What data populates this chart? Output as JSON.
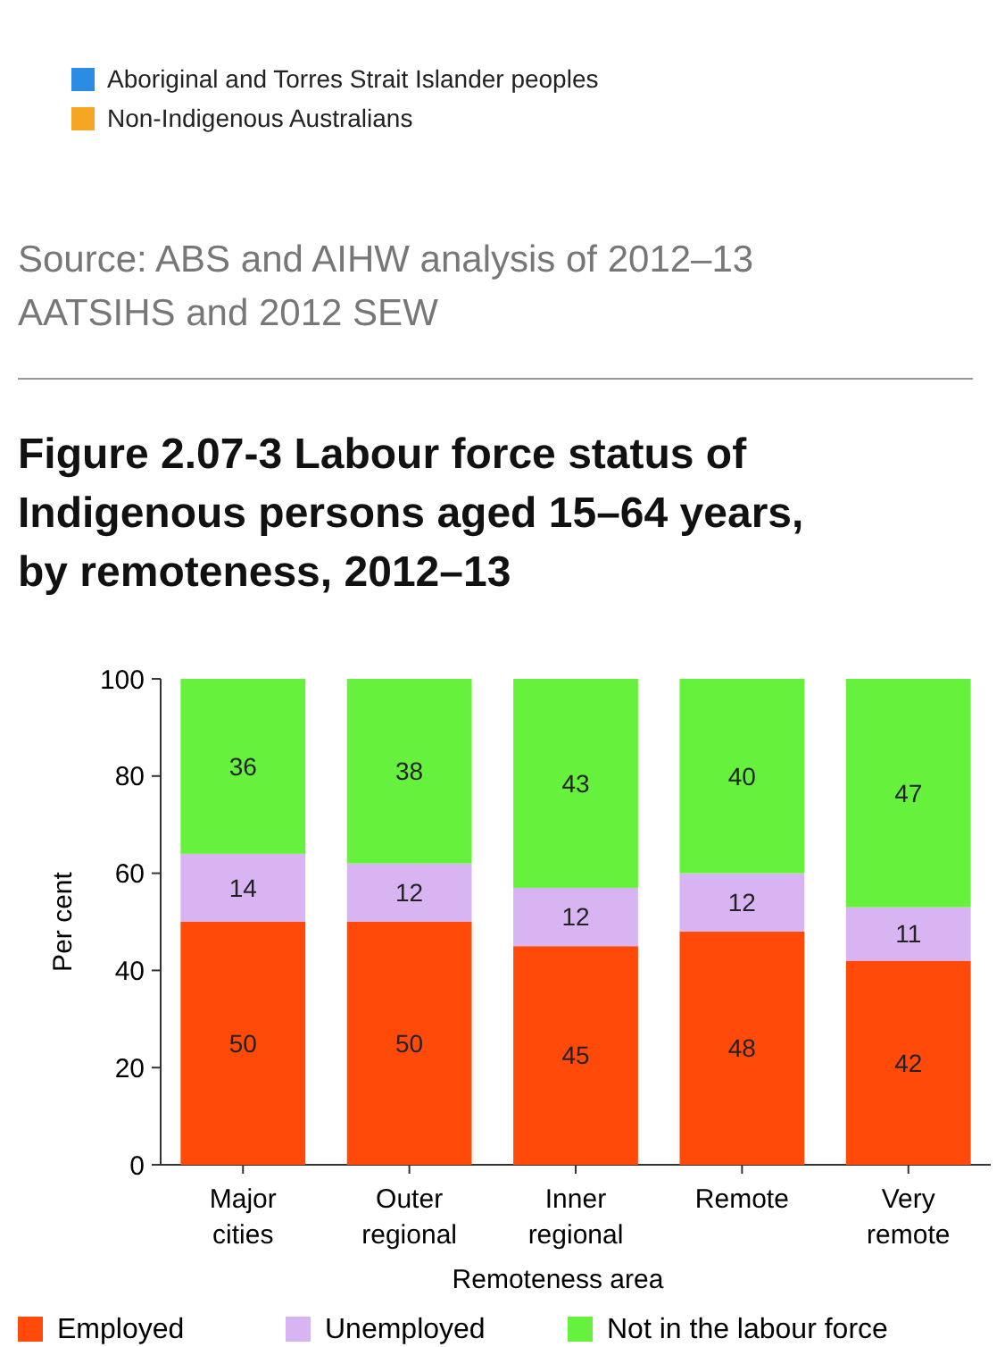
{
  "chart_data": [
    {
      "type": "other",
      "legend": "top left",
      "series": [
        {
          "name": "Aboriginal and Torres Strait Islander peoples",
          "color": "#2b8ce6"
        },
        {
          "name": "Non-Indigenous Australians",
          "color": "#f5a623"
        }
      ],
      "annotations": [
        "Source: ABS and AIHW analysis of 2012–13 AATSIHS and 2012 SEW"
      ]
    },
    {
      "type": "bar",
      "stacked": true,
      "title": "Figure 2.07-3 Labour force status of Indigenous persons aged 15–64 years, by remoteness, 2012–13",
      "xlabel": "Remoteness area",
      "ylabel": "Per cent",
      "categories": [
        "Major cities",
        "Outer regional",
        "Inner regional",
        "Remote",
        "Very remote"
      ],
      "ylim": [
        0,
        100
      ],
      "yticks": [
        0,
        20,
        40,
        60,
        80,
        100
      ],
      "data_labels": true,
      "legend": "bottom",
      "grid": false,
      "series": [
        {
          "name": "Employed",
          "color": "#ff4a0a",
          "values": [
            50,
            50,
            45,
            48,
            42
          ]
        },
        {
          "name": "Unemployed",
          "color": "#d8b4f2",
          "values": [
            14,
            12,
            12,
            12,
            11
          ]
        },
        {
          "name": "Not in the labour force",
          "color": "#66f23c",
          "values": [
            36,
            38,
            43,
            40,
            47
          ]
        }
      ]
    }
  ]
}
